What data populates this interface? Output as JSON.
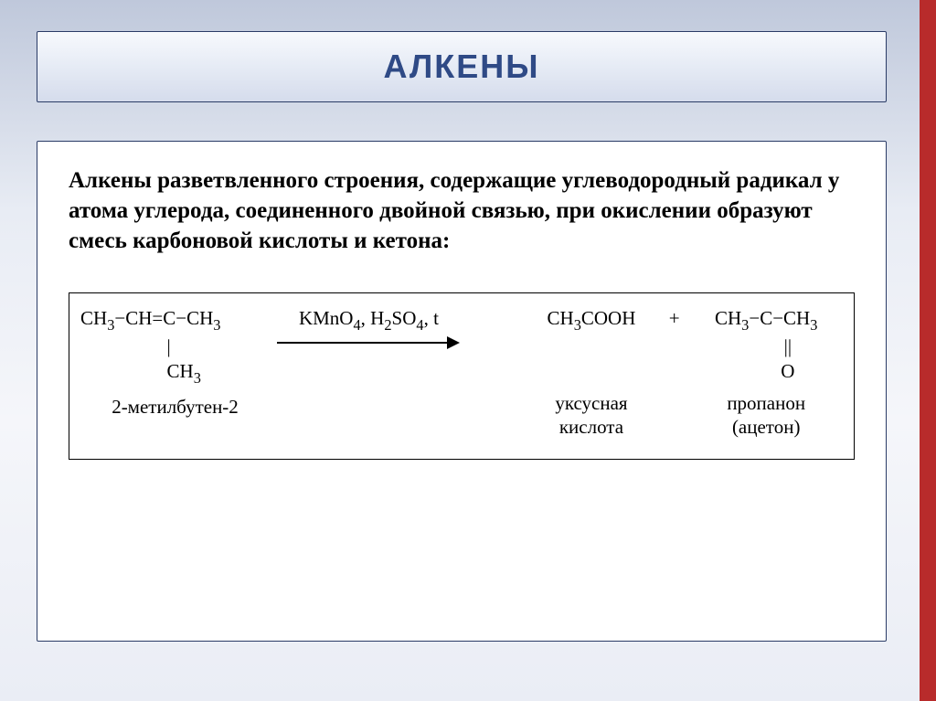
{
  "accent_color": "#b82b2b",
  "title": {
    "text": "АЛКЕНЫ",
    "color": "#2f4a86",
    "fontsize": 36
  },
  "intro": {
    "text": "Алкены разветвленного строения, содержащие углеводородный радикал у атома углерода, соединенного двойной связью, при окислении образуют смесь карбоновой кислоты и кетона:",
    "fontsize": 25
  },
  "reaction": {
    "fontsize": 21,
    "reactant": {
      "line1_segments": [
        "CH",
        "3",
        "−CH=C−CH",
        "3"
      ],
      "line2": "                  |",
      "line3_segments": [
        "                  CH",
        "3"
      ],
      "label": "2-метилбутен-2"
    },
    "arrow": {
      "conditions_segments": [
        "KMnO",
        "4",
        ", H",
        "2",
        "SO",
        "4",
        ", t"
      ],
      "shaft_width": 186
    },
    "product_acid": {
      "formula_segments": [
        "CH",
        "3",
        "COOH"
      ],
      "label_line1": "уксусная",
      "label_line2": "кислота"
    },
    "plus": "+",
    "product_ketone": {
      "line1_segments": [
        "CH",
        "3",
        "−C−CH",
        "3"
      ],
      "line2": "         ||",
      "line3": "         O",
      "label_line1": "пропанон",
      "label_line2": "(ацетон)"
    }
  }
}
